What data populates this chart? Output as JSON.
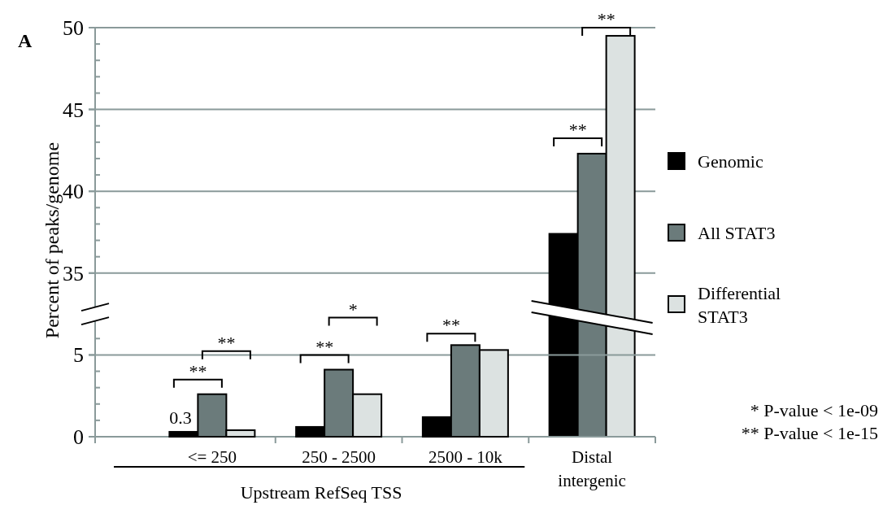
{
  "chart_data": [
    {
      "type": "bar",
      "categories": [
        null,
        null,
        null,
        null
      ],
      "ylabel": "Percent of peaks/genome",
      "series": [
        {
          "name": "Genomic",
          "color": "#000000",
          "values": [
            null,
            null,
            null,
            37.4
          ]
        },
        {
          "name": "All STAT3",
          "color": "#6b7b7b",
          "values": [
            null,
            null,
            null,
            42.3
          ]
        },
        {
          "name": "Differential STAT3",
          "color": "#dce2e1",
          "values": [
            null,
            null,
            null,
            49.5
          ]
        }
      ],
      "ylim": [
        32.5,
        50
      ],
      "yticks": [
        35,
        {
          "value": 36,
          "label": null
        },
        {
          "value": 37,
          "label": null
        },
        {
          "value": 38,
          "label": null
        },
        {
          "value": 39,
          "label": null
        },
        40,
        {
          "value": 41,
          "label": null
        },
        {
          "value": 42,
          "label": null
        },
        {
          "value": 43,
          "label": null
        },
        {
          "value": 44,
          "label": null
        },
        45,
        {
          "value": 46,
          "label": null
        },
        {
          "value": 47,
          "label": null
        },
        {
          "value": 48,
          "label": null
        },
        {
          "value": 49,
          "label": null
        },
        50
      ],
      "grid": "y",
      "legend": "right",
      "tick_labels": "y",
      "annotations": [
        "A",
        "**",
        "**"
      ]
    },
    {
      "type": "bar",
      "categories": [
        "<= 250",
        "250 - 2500",
        "2500 - 10k",
        "Distal intergenic"
      ],
      "series": [
        {
          "color": "#000000",
          "values": [
            0.3,
            0.6,
            1.2,
            null
          ],
          "value_labels": [
            "0.3",
            null,
            null,
            null
          ]
        },
        {
          "color": "#6b7b7b",
          "values": [
            2.6,
            4.1,
            5.6,
            null
          ]
        },
        {
          "color": "#dce2e1",
          "values": [
            0.4,
            2.6,
            5.3,
            null
          ]
        }
      ],
      "ylim": [
        0,
        7.5
      ],
      "yticks": [
        0,
        {
          "value": 1,
          "label": null
        },
        {
          "value": 2,
          "label": null
        },
        {
          "value": 3,
          "label": null
        },
        {
          "value": 4,
          "label": null
        },
        5,
        {
          "value": 6,
          "label": null
        }
      ],
      "grid": "y",
      "annotations": [
        "Upstream RefSeq TSS",
        "**",
        "**",
        "**",
        "*",
        "**",
        "* P-value < 1e-09",
        "** P-value < 1e-15"
      ]
    }
  ]
}
